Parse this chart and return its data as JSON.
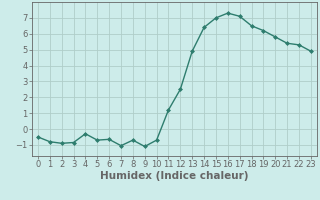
{
  "x": [
    0,
    1,
    2,
    3,
    4,
    5,
    6,
    7,
    8,
    9,
    10,
    11,
    12,
    13,
    14,
    15,
    16,
    17,
    18,
    19,
    20,
    21,
    22,
    23
  ],
  "y": [
    -0.5,
    -0.8,
    -0.9,
    -0.85,
    -0.3,
    -0.7,
    -0.65,
    -1.05,
    -0.7,
    -1.1,
    -0.7,
    1.2,
    2.5,
    4.9,
    6.4,
    7.0,
    7.3,
    7.1,
    6.5,
    6.2,
    5.8,
    5.4,
    5.3,
    4.9
  ],
  "xlabel": "Humidex (Indice chaleur)",
  "ylim": [
    -1.7,
    8.0
  ],
  "xlim": [
    -0.5,
    23.5
  ],
  "yticks": [
    -1,
    0,
    1,
    2,
    3,
    4,
    5,
    6,
    7
  ],
  "xticks": [
    0,
    1,
    2,
    3,
    4,
    5,
    6,
    7,
    8,
    9,
    10,
    11,
    12,
    13,
    14,
    15,
    16,
    17,
    18,
    19,
    20,
    21,
    22,
    23
  ],
  "line_color": "#2e7d6e",
  "marker": "D",
  "marker_size": 2.0,
  "bg_color": "#cdecea",
  "grid_color": "#b0cec9",
  "axis_color": "#666666",
  "xlabel_fontsize": 7.5,
  "tick_fontsize": 6.0,
  "line_width": 1.0
}
